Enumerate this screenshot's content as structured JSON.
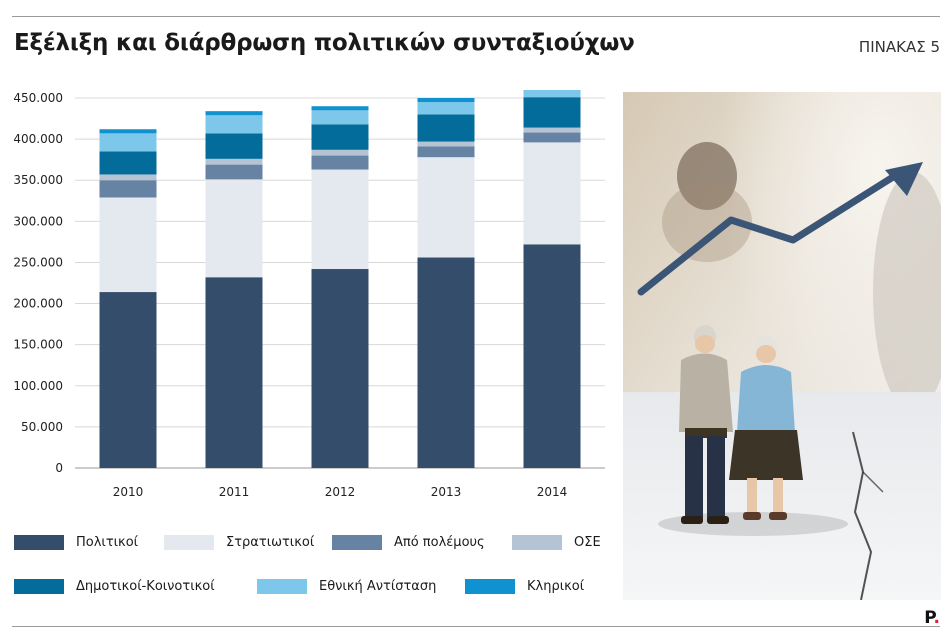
{
  "header": {
    "title": "Εξέλιξη και διάρθρωση πολιτικών συνταξιούχων",
    "table_label": "ΠΙΝΑΚΑΣ 5"
  },
  "chart_data": {
    "type": "bar",
    "stacked": true,
    "categories": [
      "2010",
      "2011",
      "2012",
      "2013",
      "2014"
    ],
    "ylim": [
      0,
      450000
    ],
    "yticks": [
      0,
      50000,
      100000,
      150000,
      200000,
      250000,
      300000,
      350000,
      400000,
      450000
    ],
    "ytick_labels": [
      "0",
      "50.000",
      "100.000",
      "150.000",
      "200.000",
      "250.000",
      "300.000",
      "350.000",
      "400.000",
      "450.000"
    ],
    "grid": true,
    "legend_position": "bottom",
    "series": [
      {
        "name": "Πολιτικοί",
        "color": "#344d6b",
        "values": [
          214000,
          232000,
          242000,
          256000,
          272000
        ]
      },
      {
        "name": "Στρατιωτικοί",
        "color": "#e4e9ef",
        "values": [
          115000,
          119000,
          121000,
          122000,
          124000
        ]
      },
      {
        "name": "Από πολέμους",
        "color": "#6683a3",
        "values": [
          21000,
          18000,
          17000,
          13000,
          12000
        ]
      },
      {
        "name": "ΟΣΕ",
        "color": "#b4c4d4",
        "values": [
          7000,
          7000,
          7000,
          6000,
          6000
        ]
      },
      {
        "name": "Δημοτικοί-Κοινοτικοί",
        "color": "#046c9b",
        "values": [
          28000,
          31000,
          31000,
          33000,
          37000
        ]
      },
      {
        "name": "Εθνική Αντίσταση",
        "color": "#7cc7ea",
        "values": [
          22000,
          22000,
          17000,
          15000,
          11000
        ]
      },
      {
        "name": "Κληρικοί",
        "color": "#1192d0",
        "values": [
          5000,
          5000,
          5000,
          5000,
          5000
        ]
      }
    ]
  },
  "branding": {
    "logo_text": "P",
    "logo_accent_color": "#e0262b"
  }
}
